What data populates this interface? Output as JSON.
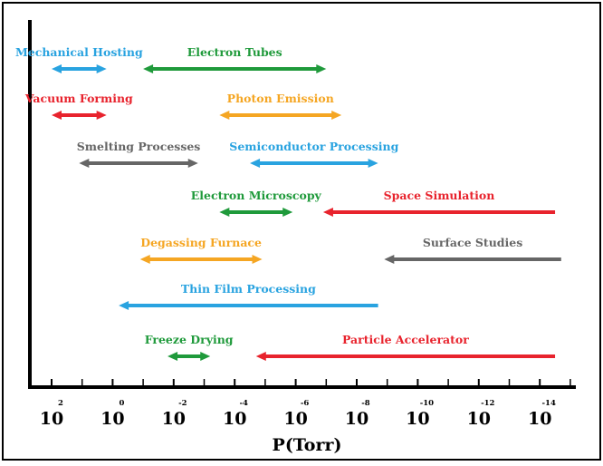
{
  "axis": {
    "label": "P(Torr)",
    "ticks": [
      {
        "base": "10",
        "exp": "2"
      },
      {
        "base": "10",
        "exp": "0"
      },
      {
        "base": "10",
        "exp": "-2"
      },
      {
        "base": "10",
        "exp": "-4"
      },
      {
        "base": "10",
        "exp": "-6"
      },
      {
        "base": "10",
        "exp": "-8"
      },
      {
        "base": "10",
        "exp": "-10"
      },
      {
        "base": "10",
        "exp": "-12"
      },
      {
        "base": "10",
        "exp": "-14"
      }
    ]
  },
  "colors": {
    "blue": "#29a3e0",
    "green": "#1f9a3b",
    "red": "#e8232d",
    "orange": "#f5a623",
    "gray": "#666666",
    "black": "#000000"
  },
  "ranges": [
    {
      "label": "Mechanical Hosting",
      "color": "blue",
      "from": 2.0,
      "to": 0.2,
      "heads": "both"
    },
    {
      "label": "Electron Tubes",
      "color": "green",
      "from": -1.0,
      "to": -7.0,
      "heads": "both"
    },
    {
      "label": "Vacuum Forming",
      "color": "red",
      "from": 2.0,
      "to": 0.2,
      "heads": "both"
    },
    {
      "label": "Photon Emission",
      "color": "orange",
      "from": -3.5,
      "to": -7.5,
      "heads": "both"
    },
    {
      "label": "Smelting Processes",
      "color": "gray",
      "from": 1.1,
      "to": -2.8,
      "heads": "both"
    },
    {
      "label": "Semiconductor Processing",
      "color": "blue",
      "from": -4.5,
      "to": -8.7,
      "heads": "both"
    },
    {
      "label": "Electron Microscopy",
      "color": "green",
      "from": -3.5,
      "to": -5.9,
      "heads": "both"
    },
    {
      "label": "Space Simulation",
      "color": "red",
      "from": -6.9,
      "to": -14.5,
      "heads": "left"
    },
    {
      "label": "Degassing Furnace",
      "color": "orange",
      "from": -0.9,
      "to": -4.9,
      "heads": "both"
    },
    {
      "label": "Surface Studies",
      "color": "gray",
      "from": -8.9,
      "to": -14.7,
      "heads": "left"
    },
    {
      "label": "Thin Film Processing",
      "color": "blue",
      "from": -0.2,
      "to": -8.7,
      "heads": "left"
    },
    {
      "label": "Freeze Drying",
      "color": "green",
      "from": -1.8,
      "to": -3.2,
      "heads": "both"
    },
    {
      "label": "Particle Accelerator",
      "color": "red",
      "from": -4.7,
      "to": -14.5,
      "heads": "left"
    }
  ]
}
